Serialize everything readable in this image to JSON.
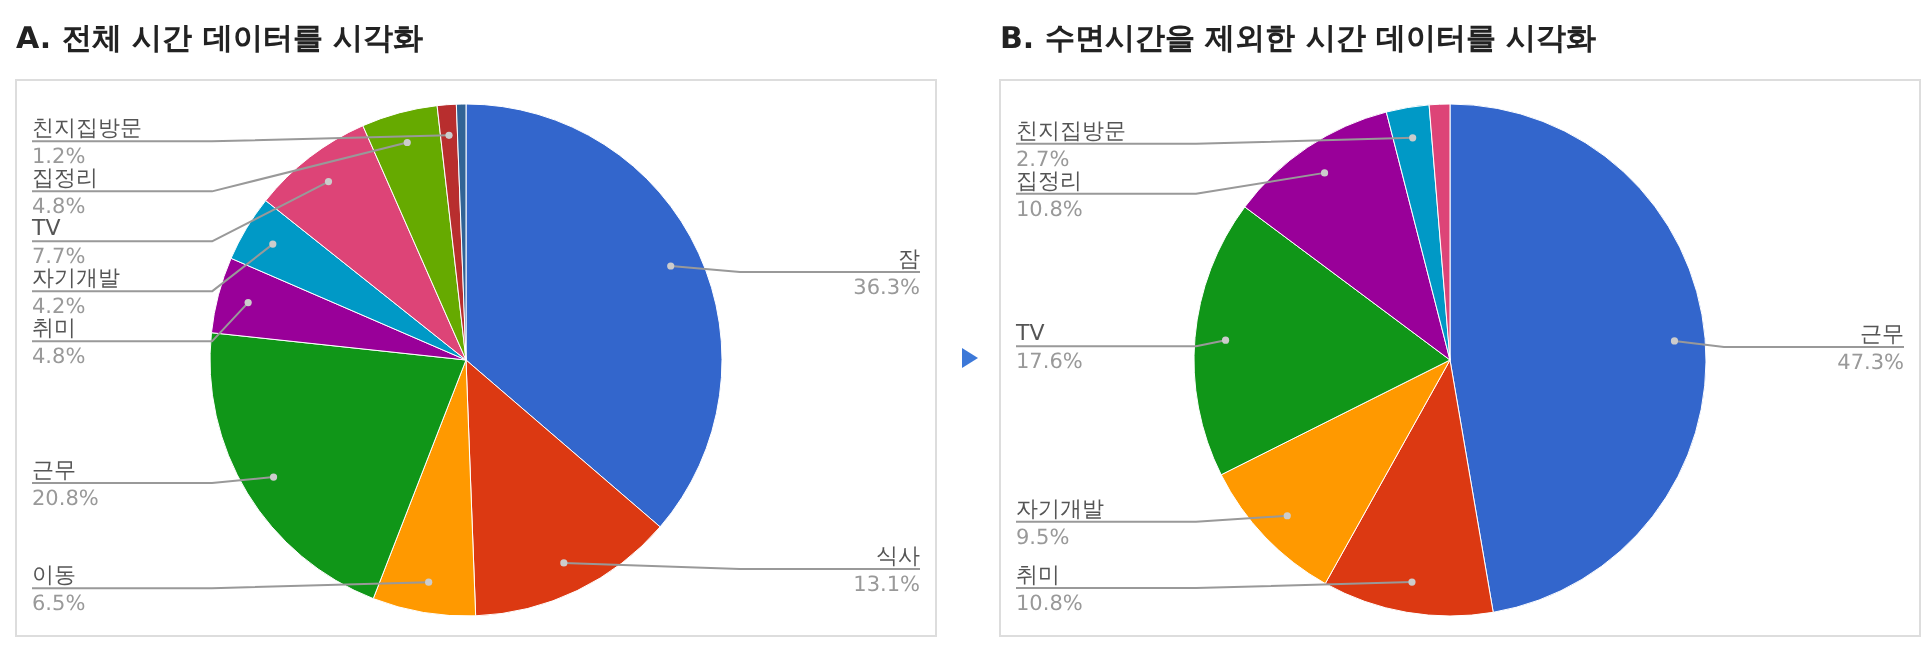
{
  "chart_data": [
    {
      "type": "pie",
      "title": "A. 전체 시간 데이터를 시각화",
      "categories": [
        "잠",
        "식사",
        "이동",
        "근무",
        "취미",
        "자기개발",
        "TV",
        "집정리",
        "친지집방문",
        null
      ],
      "values": [
        36.3,
        13.1,
        6.5,
        20.8,
        4.8,
        4.2,
        7.7,
        4.8,
        1.2,
        0.6
      ],
      "value_labels": [
        "36.3%",
        "13.1%",
        "6.5%",
        "20.8%",
        "4.8%",
        "4.2%",
        "7.7%",
        "4.8%",
        "1.2%",
        null
      ],
      "colors": [
        "#3366cc",
        "#dc3912",
        "#ff9900",
        "#109618",
        "#990099",
        "#0099c6",
        "#dd4477",
        "#66aa00",
        "#b82e2e",
        "#316395"
      ]
    },
    {
      "type": "pie",
      "title": "B. 수면시간을 제외한 시간 데이터를 시각화",
      "categories": [
        "근무",
        "취미",
        "자기개발",
        "TV",
        "집정리",
        "친지집방문",
        null
      ],
      "values": [
        47.3,
        10.8,
        9.5,
        17.6,
        10.8,
        2.7,
        1.3
      ],
      "value_labels": [
        "47.3%",
        "10.8%",
        "9.5%",
        "17.6%",
        "10.8%",
        "2.7%",
        null
      ],
      "colors": [
        "#3366cc",
        "#dc3912",
        "#ff9900",
        "#109618",
        "#990099",
        "#0099c6",
        "#dd4477"
      ]
    }
  ]
}
